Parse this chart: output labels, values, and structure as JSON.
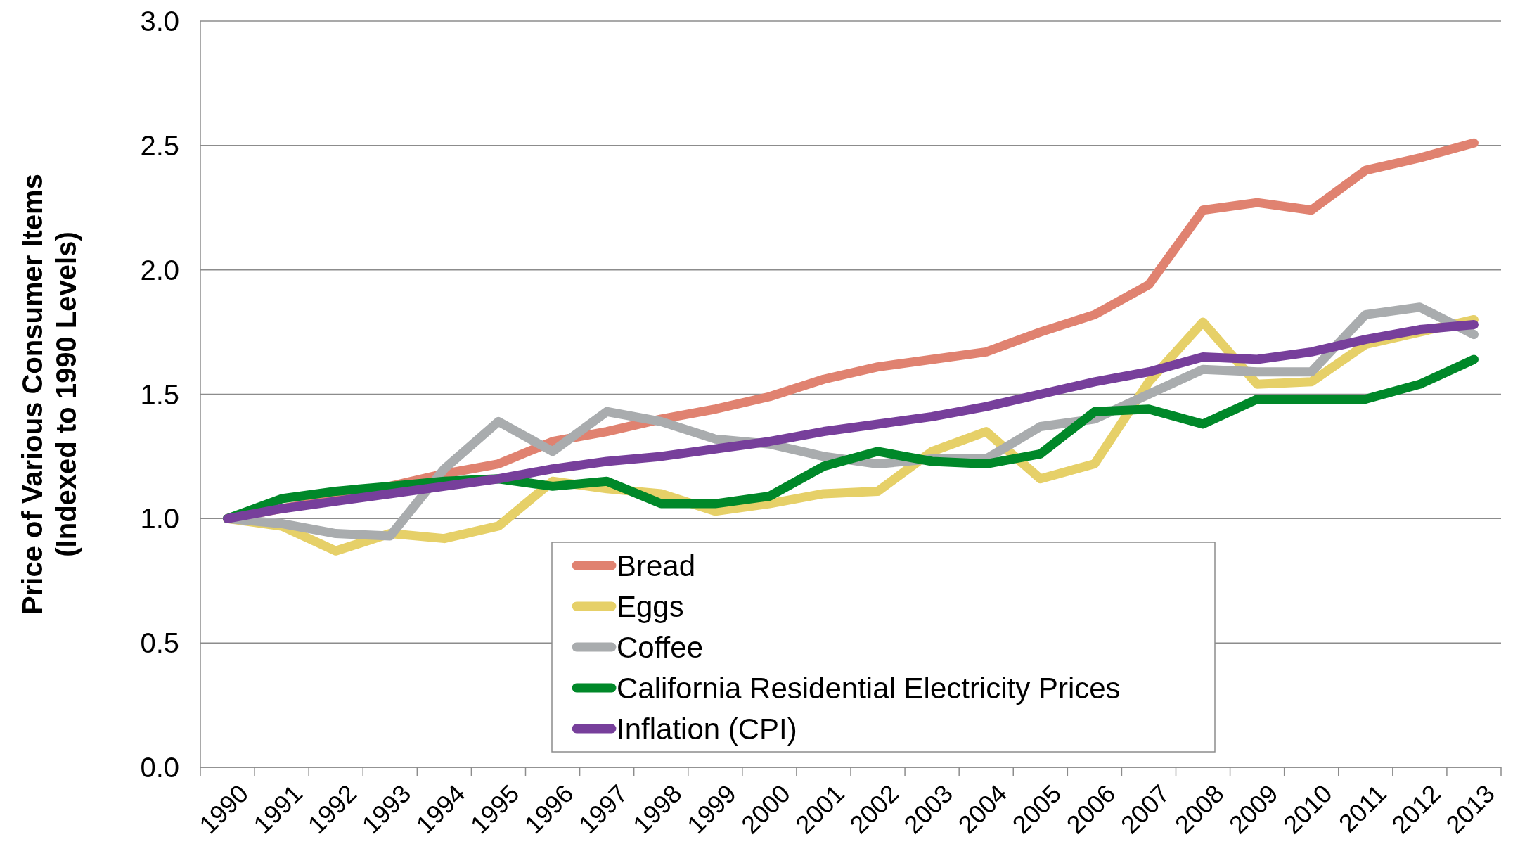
{
  "chart_data": {
    "type": "line",
    "ylabel": "Price of Various Consumer Items\n(Indexed to 1990 Levels)",
    "categories": [
      "1990",
      "1991",
      "1992",
      "1993",
      "1994",
      "1995",
      "1996",
      "1997",
      "1998",
      "1999",
      "2000",
      "2001",
      "2002",
      "2003",
      "2004",
      "2005",
      "2006",
      "2007",
      "2008",
      "2009",
      "2010",
      "2011",
      "2012",
      "2013"
    ],
    "series": [
      {
        "name": "Bread",
        "color": "#e08270",
        "values": [
          1.0,
          1.04,
          1.08,
          1.13,
          1.18,
          1.22,
          1.31,
          1.35,
          1.4,
          1.44,
          1.49,
          1.56,
          1.61,
          1.64,
          1.67,
          1.75,
          1.82,
          1.94,
          2.24,
          2.27,
          2.24,
          2.4,
          2.45,
          2.51
        ]
      },
      {
        "name": "Eggs",
        "color": "#e6d068",
        "values": [
          1.0,
          0.97,
          0.87,
          0.94,
          0.92,
          0.97,
          1.15,
          1.12,
          1.1,
          1.03,
          1.06,
          1.1,
          1.11,
          1.27,
          1.35,
          1.16,
          1.22,
          1.55,
          1.79,
          1.54,
          1.55,
          1.7,
          1.75,
          1.8
        ]
      },
      {
        "name": "Coffee",
        "color": "#a9acae",
        "values": [
          1.0,
          0.98,
          0.94,
          0.93,
          1.2,
          1.39,
          1.27,
          1.43,
          1.39,
          1.32,
          1.3,
          1.25,
          1.22,
          1.24,
          1.24,
          1.37,
          1.4,
          1.5,
          1.6,
          1.59,
          1.59,
          1.82,
          1.85,
          1.74
        ]
      },
      {
        "name": "California Residential Electricity Prices",
        "color": "#008829",
        "values": [
          1.0,
          1.08,
          1.11,
          1.13,
          1.15,
          1.16,
          1.13,
          1.15,
          1.06,
          1.06,
          1.09,
          1.21,
          1.27,
          1.23,
          1.22,
          1.26,
          1.43,
          1.44,
          1.38,
          1.48,
          1.48,
          1.48,
          1.54,
          1.64
        ]
      },
      {
        "name": "Inflation (CPI)",
        "color": "#773f9b",
        "values": [
          1.0,
          1.04,
          1.07,
          1.1,
          1.13,
          1.16,
          1.2,
          1.23,
          1.25,
          1.28,
          1.31,
          1.35,
          1.38,
          1.41,
          1.45,
          1.5,
          1.55,
          1.59,
          1.65,
          1.64,
          1.67,
          1.72,
          1.76,
          1.78
        ]
      }
    ],
    "ylim": [
      0,
      3
    ],
    "yticks": [
      {
        "value": 0,
        "label": "0.0"
      },
      {
        "value": 0.5,
        "label": "0.5"
      },
      {
        "value": 1,
        "label": "1.0"
      },
      {
        "value": 1.5,
        "label": "1.5"
      },
      {
        "value": 2,
        "label": "2.0"
      },
      {
        "value": 2.5,
        "label": "2.5"
      },
      {
        "value": 3,
        "label": "3.0"
      }
    ],
    "grid": "y",
    "legend": "bottom",
    "marker": "none",
    "line_style": "solid"
  }
}
